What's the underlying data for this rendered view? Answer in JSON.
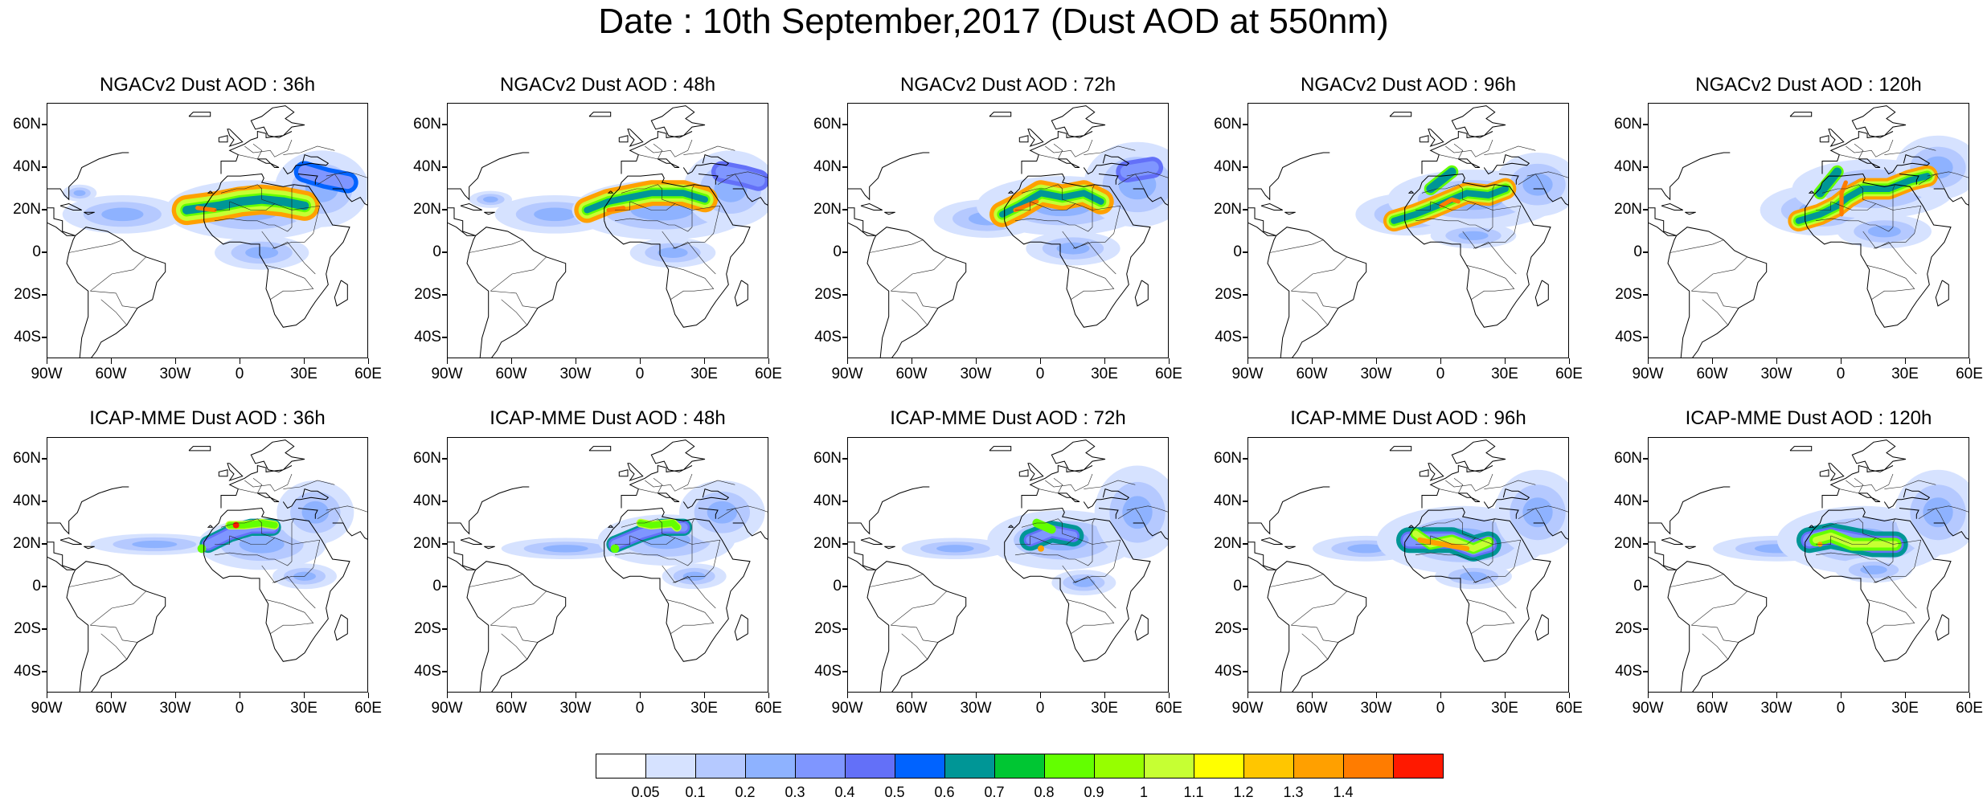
{
  "title": "Date : 10th September,2017 (Dust AOD at 550nm)",
  "panels": [
    {
      "title": "NGACv2 Dust AOD : 36h",
      "model": "ngac",
      "lead": 36
    },
    {
      "title": "NGACv2 Dust AOD : 48h",
      "model": "ngac",
      "lead": 48
    },
    {
      "title": "NGACv2 Dust AOD : 72h",
      "model": "ngac",
      "lead": 72
    },
    {
      "title": "NGACv2 Dust AOD : 96h",
      "model": "ngac",
      "lead": 96
    },
    {
      "title": "NGACv2 Dust AOD : 120h",
      "model": "ngac",
      "lead": 120
    },
    {
      "title": "ICAP-MME Dust AOD : 36h",
      "model": "icap",
      "lead": 36
    },
    {
      "title": "ICAP-MME Dust AOD : 48h",
      "model": "icap",
      "lead": 48
    },
    {
      "title": "ICAP-MME Dust AOD : 72h",
      "model": "icap",
      "lead": 72
    },
    {
      "title": "ICAP-MME Dust AOD : 96h",
      "model": "icap",
      "lead": 96
    },
    {
      "title": "ICAP-MME Dust AOD : 120h",
      "model": "icap",
      "lead": 120
    }
  ],
  "lat_labels": [
    "60N",
    "40N",
    "20N",
    "0",
    "20S",
    "40S"
  ],
  "lon_labels": [
    "90W",
    "60W",
    "30W",
    "0",
    "30E",
    "60E"
  ],
  "colorbar": {
    "labels": [
      "0.05",
      "0.1",
      "0.2",
      "0.3",
      "0.4",
      "0.5",
      "0.6",
      "0.7",
      "0.8",
      "0.9",
      "1",
      "1.1",
      "1.2",
      "1.3",
      "1.4"
    ],
    "colors": [
      "#ffffff",
      "#d6e2ff",
      "#b5c9ff",
      "#8eb2ff",
      "#7f96ff",
      "#6370f8",
      "#0063ff",
      "#009696",
      "#00c633",
      "#63ff00",
      "#96ff00",
      "#c6ff33",
      "#ffff00",
      "#ffc600",
      "#ffa000",
      "#ff7c00",
      "#ff1900"
    ]
  }
}
